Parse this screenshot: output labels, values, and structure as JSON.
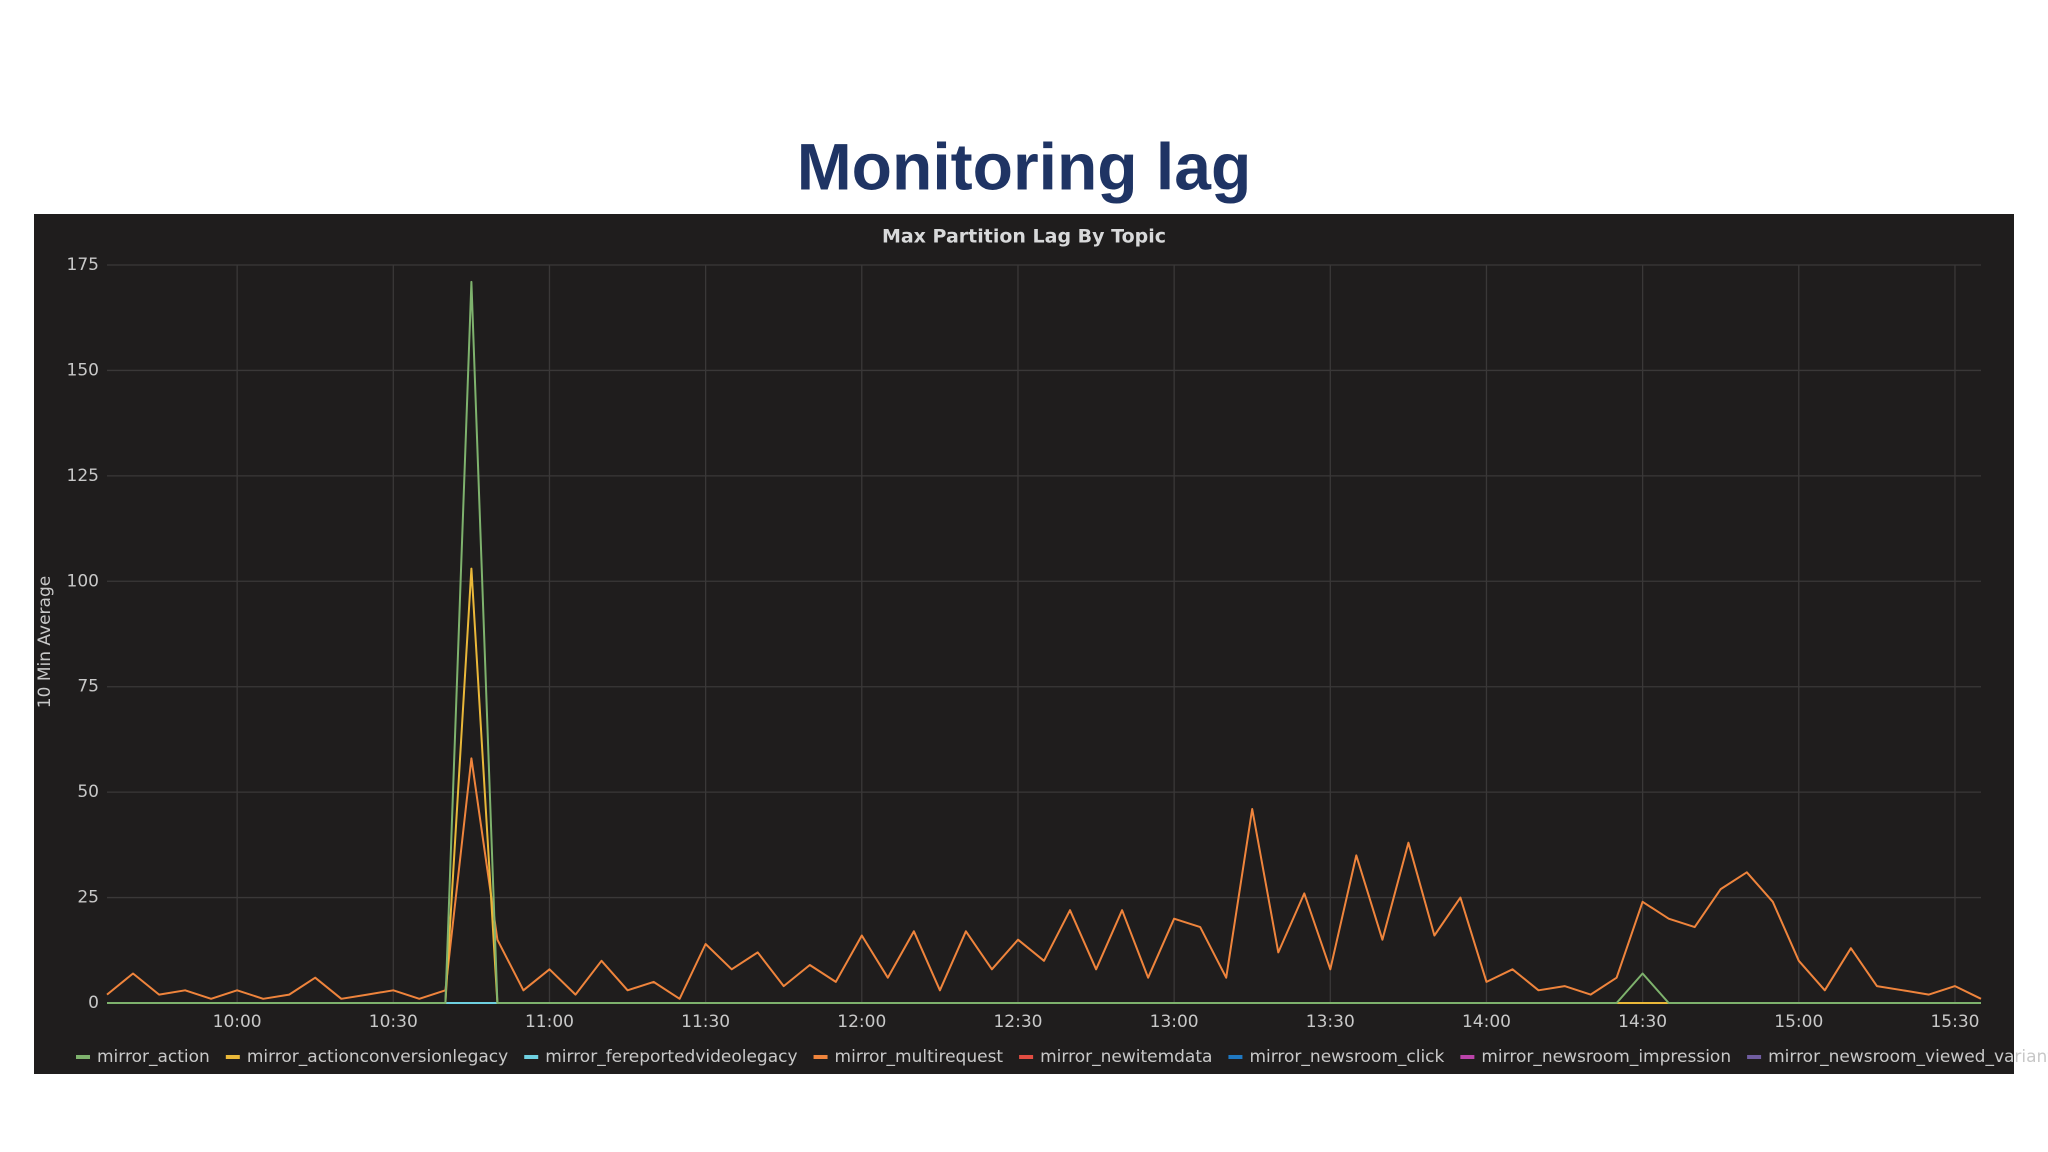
{
  "slide_title": "Monitoring lag",
  "chart_data": {
    "type": "line",
    "title": "Max Partition Lag By Topic",
    "y_label": "10 Min Average",
    "x": [
      "09:35",
      "09:40",
      "09:45",
      "09:50",
      "09:55",
      "10:00",
      "10:05",
      "10:10",
      "10:15",
      "10:20",
      "10:25",
      "10:30",
      "10:35",
      "10:40",
      "10:45",
      "10:50",
      "10:55",
      "11:00",
      "11:05",
      "11:10",
      "11:15",
      "11:20",
      "11:25",
      "11:30",
      "11:35",
      "11:40",
      "11:45",
      "11:50",
      "11:55",
      "12:00",
      "12:05",
      "12:10",
      "12:15",
      "12:20",
      "12:25",
      "12:30",
      "12:35",
      "12:40",
      "12:45",
      "12:50",
      "12:55",
      "13:00",
      "13:05",
      "13:10",
      "13:15",
      "13:20",
      "13:25",
      "13:30",
      "13:35",
      "13:40",
      "13:45",
      "13:50",
      "13:55",
      "14:00",
      "14:05",
      "14:10",
      "14:15",
      "14:20",
      "14:25",
      "14:30",
      "14:35",
      "14:40",
      "14:45",
      "14:50",
      "14:55",
      "15:00",
      "15:05",
      "15:10",
      "15:15",
      "15:20",
      "15:25",
      "15:30",
      "15:35"
    ],
    "xlim": [
      "09:35",
      "15:35"
    ],
    "xticks": [
      "10:00",
      "10:30",
      "11:00",
      "11:30",
      "12:00",
      "12:30",
      "13:00",
      "13:30",
      "14:00",
      "14:30",
      "15:00",
      "15:30"
    ],
    "ylim": [
      0,
      175
    ],
    "yticks": [
      0,
      25,
      50,
      75,
      100,
      125,
      150,
      175
    ],
    "grid": true,
    "legend": "bottom",
    "series": [
      {
        "name": "mirror_action",
        "color": "#7eb26d",
        "values": [
          0,
          0,
          0,
          0,
          0,
          0,
          0,
          0,
          0,
          0,
          0,
          0,
          0,
          0,
          171,
          0,
          0,
          0,
          0,
          0,
          0,
          0,
          0,
          0,
          0,
          0,
          0,
          0,
          0,
          0,
          0,
          0,
          0,
          0,
          0,
          0,
          0,
          0,
          0,
          0,
          0,
          0,
          0,
          0,
          0,
          0,
          0,
          0,
          0,
          0,
          0,
          0,
          0,
          0,
          0,
          0,
          0,
          0,
          0,
          7,
          0,
          0,
          0,
          0,
          0,
          0,
          0,
          0,
          0,
          0,
          0,
          0,
          0
        ]
      },
      {
        "name": "mirror_actionconversionlegacy",
        "color": "#eab839",
        "values": [
          0,
          0,
          0,
          0,
          0,
          0,
          0,
          0,
          0,
          0,
          0,
          0,
          0,
          0,
          103,
          0,
          0,
          0,
          0,
          0,
          0,
          0,
          0,
          0,
          0,
          0,
          0,
          0,
          0,
          0,
          0,
          0,
          0,
          0,
          0,
          0,
          0,
          0,
          0,
          0,
          0,
          0,
          0,
          0,
          0,
          0,
          0,
          0,
          0,
          0,
          0,
          0,
          0,
          0,
          0,
          0,
          0,
          0,
          0,
          0,
          0,
          0,
          0,
          0,
          0,
          0,
          0,
          0,
          0,
          0,
          0,
          0,
          0
        ]
      },
      {
        "name": "mirror_fereportedvideolegacy",
        "color": "#6ed0e0",
        "values": [
          0,
          0,
          0,
          0,
          0,
          0,
          0,
          0,
          0,
          0,
          0,
          0,
          0,
          0,
          0,
          0,
          0,
          0,
          0,
          0,
          0,
          0,
          0,
          0,
          0,
          0,
          0,
          0,
          0,
          0,
          0,
          0,
          0,
          0,
          0,
          0,
          0,
          0,
          0,
          0,
          0,
          0,
          0,
          0,
          0,
          0,
          0,
          0,
          0,
          0,
          0,
          0,
          0,
          0,
          0,
          0,
          0,
          0,
          0,
          0,
          0,
          0,
          0,
          0,
          0,
          0,
          0,
          0,
          0,
          0,
          0,
          0,
          0
        ]
      },
      {
        "name": "mirror_multirequest",
        "color": "#ef843c",
        "values": [
          2,
          7,
          2,
          3,
          1,
          3,
          1,
          2,
          6,
          1,
          2,
          3,
          1,
          3,
          58,
          15,
          3,
          8,
          2,
          10,
          3,
          5,
          1,
          14,
          8,
          12,
          4,
          9,
          5,
          16,
          6,
          17,
          3,
          17,
          8,
          15,
          10,
          22,
          8,
          22,
          6,
          20,
          18,
          6,
          46,
          12,
          26,
          8,
          35,
          15,
          38,
          16,
          25,
          5,
          8,
          3,
          4,
          2,
          6,
          24,
          20,
          18,
          27,
          31,
          24,
          10,
          3,
          13,
          4,
          3,
          2,
          4,
          1
        ]
      },
      {
        "name": "mirror_newitemdata",
        "color": "#e24d42",
        "values": [
          0,
          0,
          0,
          0,
          0,
          0,
          0,
          0,
          0,
          0,
          0,
          0,
          0,
          0,
          0,
          0,
          0,
          0,
          0,
          0,
          0,
          0,
          0,
          0,
          0,
          0,
          0,
          0,
          0,
          0,
          0,
          0,
          0,
          0,
          0,
          0,
          0,
          0,
          0,
          0,
          0,
          0,
          0,
          0,
          0,
          0,
          0,
          0,
          0,
          0,
          0,
          0,
          0,
          0,
          0,
          0,
          0,
          0,
          0,
          0,
          0,
          0,
          0,
          0,
          0,
          0,
          0,
          0,
          0,
          0,
          0,
          0,
          0
        ]
      },
      {
        "name": "mirror_newsroom_click",
        "color": "#1f78c1",
        "values": [
          0,
          0,
          0,
          0,
          0,
          0,
          0,
          0,
          0,
          0,
          0,
          0,
          0,
          0,
          0,
          0,
          0,
          0,
          0,
          0,
          0,
          0,
          0,
          0,
          0,
          0,
          0,
          0,
          0,
          0,
          0,
          0,
          0,
          0,
          0,
          0,
          0,
          0,
          0,
          0,
          0,
          0,
          0,
          0,
          0,
          0,
          0,
          0,
          0,
          0,
          0,
          0,
          0,
          0,
          0,
          0,
          0,
          0,
          0,
          0,
          0,
          0,
          0,
          0,
          0,
          0,
          0,
          0,
          0,
          0,
          0,
          0,
          0
        ]
      },
      {
        "name": "mirror_newsroom_impression",
        "color": "#ba43a9",
        "values": [
          0,
          0,
          0,
          0,
          0,
          0,
          0,
          0,
          0,
          0,
          0,
          0,
          0,
          0,
          0,
          0,
          0,
          0,
          0,
          0,
          0,
          0,
          0,
          0,
          0,
          0,
          0,
          0,
          0,
          0,
          0,
          0,
          0,
          0,
          0,
          0,
          0,
          0,
          0,
          0,
          0,
          0,
          0,
          0,
          0,
          0,
          0,
          0,
          0,
          0,
          0,
          0,
          0,
          0,
          0,
          0,
          0,
          0,
          0,
          0,
          0,
          0,
          0,
          0,
          0,
          0,
          0,
          0,
          0,
          0,
          0,
          0,
          0
        ]
      },
      {
        "name": "mirror_newsroom_viewed_variant",
        "color": "#705da0",
        "values": [
          0,
          0,
          0,
          0,
          0,
          0,
          0,
          0,
          0,
          0,
          0,
          0,
          0,
          0,
          0,
          0,
          0,
          0,
          0,
          0,
          0,
          0,
          0,
          0,
          0,
          0,
          0,
          0,
          0,
          0,
          0,
          0,
          0,
          0,
          0,
          0,
          0,
          0,
          0,
          0,
          0,
          0,
          0,
          0,
          0,
          0,
          0,
          0,
          0,
          0,
          0,
          0,
          0,
          0,
          0,
          0,
          0,
          0,
          0,
          0,
          0,
          0,
          0,
          0,
          0,
          0,
          0,
          0,
          0,
          0,
          0,
          0,
          0
        ]
      }
    ]
  }
}
